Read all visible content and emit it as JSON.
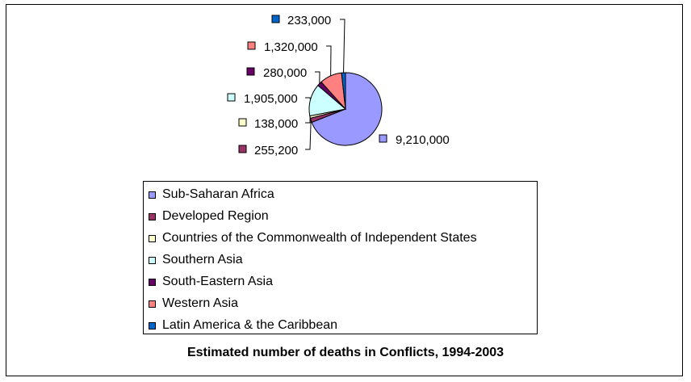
{
  "chart_data": {
    "type": "pie",
    "title": "Estimated number of deaths in Conflicts, 1994-2003",
    "legend_position": "bottom",
    "series": [
      {
        "name": "Sub-Saharan Africa",
        "value": 9210000,
        "label": "9,210,000",
        "color": "#9999FF"
      },
      {
        "name": "Developed Region",
        "value": 255200,
        "label": "255,200",
        "color": "#993366"
      },
      {
        "name": "Countries of the Commonwealth of Independent States",
        "value": 138000,
        "label": "138,000",
        "color": "#FFFFCC"
      },
      {
        "name": "Southern Asia",
        "value": 1905000,
        "label": "1,905,000",
        "color": "#CCFFFF"
      },
      {
        "name": "South-Eastern Asia",
        "value": 280000,
        "label": "280,000",
        "color": "#660066"
      },
      {
        "name": "Western Asia",
        "value": 1320000,
        "label": "1,320,000",
        "color": "#FF8080"
      },
      {
        "name": "Latin America & the Caribbean",
        "value": 233000,
        "label": "233,000",
        "color": "#0066CC"
      }
    ]
  }
}
